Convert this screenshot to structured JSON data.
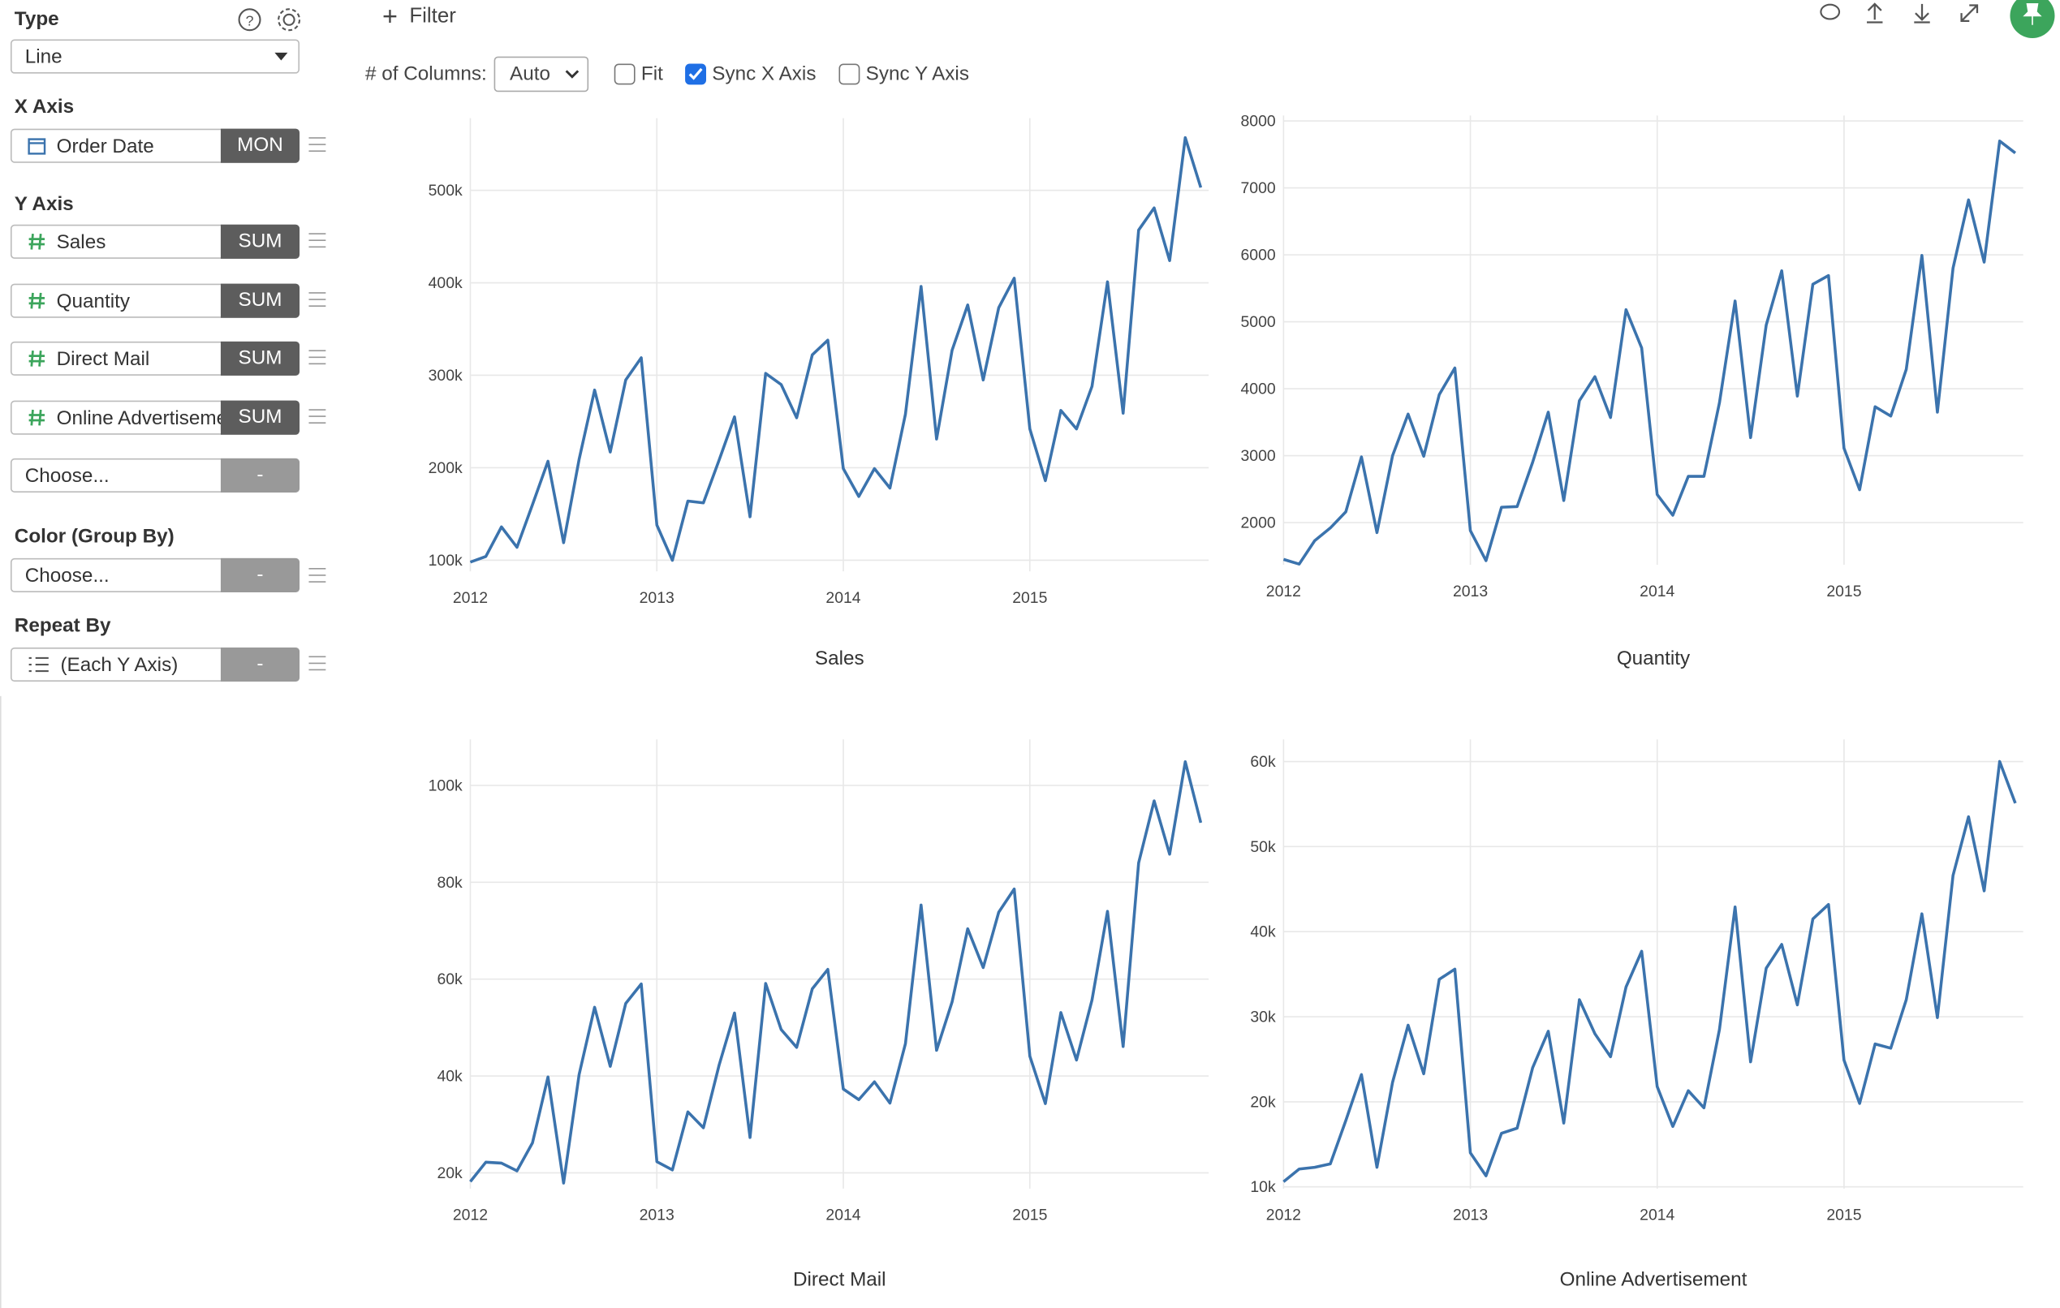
{
  "sidebar": {
    "type_label": "Type",
    "type_value": "Line",
    "x_axis_label": "X Axis",
    "x_field": "Order Date",
    "x_agg": "MON",
    "y_axis_label": "Y Axis",
    "y_fields": [
      {
        "name": "Sales",
        "agg": "SUM"
      },
      {
        "name": "Quantity",
        "agg": "SUM"
      },
      {
        "name": "Direct Mail",
        "agg": "SUM"
      },
      {
        "name": "Online Advertisement",
        "agg": "SUM"
      },
      {
        "name": "Choose...",
        "agg": "-"
      }
    ],
    "color_label": "Color (Group By)",
    "color_choose": "Choose...",
    "color_agg": "-",
    "repeat_label": "Repeat By",
    "repeat_value": "(Each Y Axis)",
    "repeat_agg": "-"
  },
  "toolbar": {
    "filter": "Filter",
    "columns_label": "# of Columns:",
    "columns_value": "Auto",
    "fit": "Fit",
    "fit_checked": false,
    "sync_x": "Sync X Axis",
    "sync_x_checked": true,
    "sync_y": "Sync Y Axis",
    "sync_y_checked": false
  },
  "chart_data": [
    {
      "type": "line",
      "title": "Sales",
      "color": "#3b73ad",
      "grid": true,
      "categories": [
        "2012",
        null,
        null,
        null,
        null,
        null,
        null,
        null,
        null,
        null,
        null,
        null,
        "2013",
        null,
        null,
        null,
        null,
        null,
        null,
        null,
        null,
        null,
        null,
        null,
        "2014",
        null,
        null,
        null,
        null,
        null,
        null,
        null,
        null,
        null,
        null,
        null,
        "2015",
        null,
        null,
        null,
        null,
        null,
        null,
        null,
        null,
        null,
        null,
        null
      ],
      "values": [
        98000,
        104000,
        136000,
        114000,
        160000,
        207000,
        119000,
        209000,
        284000,
        217000,
        295000,
        319000,
        138000,
        100000,
        164000,
        162000,
        208000,
        255000,
        147000,
        302000,
        290000,
        254000,
        322000,
        338000,
        199000,
        169000,
        199000,
        178000,
        258000,
        396000,
        231000,
        327000,
        376000,
        295000,
        373000,
        405000,
        242000,
        186000,
        262000,
        242000,
        288000,
        401000,
        259000,
        457000,
        481000,
        424000,
        557000,
        503000
      ],
      "ylim": [
        88000,
        578000
      ],
      "yticks": [
        {
          "value": 100000,
          "label": "100k"
        },
        {
          "value": 200000,
          "label": "200k"
        },
        {
          "value": 300000,
          "label": "300k"
        },
        {
          "value": 400000,
          "label": "400k"
        },
        {
          "value": 500000,
          "label": "500k"
        }
      ]
    },
    {
      "type": "line",
      "title": "Quantity",
      "color": "#3b73ad",
      "grid": true,
      "categories": [
        "2012",
        null,
        null,
        null,
        null,
        null,
        null,
        null,
        null,
        null,
        null,
        null,
        "2013",
        null,
        null,
        null,
        null,
        null,
        null,
        null,
        null,
        null,
        null,
        null,
        "2014",
        null,
        null,
        null,
        null,
        null,
        null,
        null,
        null,
        null,
        null,
        null,
        "2015",
        null,
        null,
        null,
        null,
        null,
        null,
        null,
        null,
        null,
        null,
        null
      ],
      "values": [
        1450,
        1380,
        1730,
        1920,
        2160,
        2980,
        1850,
        3000,
        3620,
        2990,
        3910,
        4310,
        1880,
        1430,
        2230,
        2240,
        2900,
        3650,
        2330,
        3820,
        4180,
        3570,
        5180,
        4610,
        2420,
        2110,
        2690,
        2690,
        3790,
        5310,
        3270,
        4950,
        5760,
        3890,
        5560,
        5690,
        3110,
        2490,
        3730,
        3590,
        4290,
        5990,
        3650,
        5800,
        6820,
        5890,
        7700,
        7520
      ],
      "ylim": [
        1370,
        8080
      ],
      "yticks": [
        2000,
        3000,
        4000,
        5000,
        6000,
        7000,
        8000
      ]
    },
    {
      "type": "line",
      "title": "Direct Mail",
      "color": "#3b73ad",
      "grid": true,
      "categories": [
        "2012",
        null,
        null,
        null,
        null,
        null,
        null,
        null,
        null,
        null,
        null,
        null,
        "2013",
        null,
        null,
        null,
        null,
        null,
        null,
        null,
        null,
        null,
        null,
        null,
        "2014",
        null,
        null,
        null,
        null,
        null,
        null,
        null,
        null,
        null,
        null,
        null,
        "2015",
        null,
        null,
        null,
        null,
        null,
        null,
        null,
        null,
        null,
        null,
        null
      ],
      "values": [
        18200,
        22200,
        22000,
        20400,
        26200,
        39800,
        17900,
        40300,
        54200,
        42000,
        55000,
        59000,
        22300,
        20600,
        32600,
        29300,
        42200,
        53000,
        27300,
        59100,
        49600,
        45900,
        58000,
        62000,
        37300,
        35100,
        38800,
        34400,
        46700,
        75300,
        45300,
        55300,
        70400,
        62400,
        73800,
        78600,
        44100,
        34300,
        53100,
        43300,
        55700,
        74000,
        46100,
        84000,
        96800,
        85800,
        104900,
        92300
      ],
      "ylim": [
        16750,
        109500
      ],
      "yticks": [
        {
          "value": 20000,
          "label": "20k"
        },
        {
          "value": 40000,
          "label": "40k"
        },
        {
          "value": 60000,
          "label": "60k"
        },
        {
          "value": 80000,
          "label": "80k"
        },
        {
          "value": 100000,
          "label": "100k"
        }
      ]
    },
    {
      "type": "line",
      "title": "Online Advertisement",
      "color": "#3b73ad",
      "grid": true,
      "categories": [
        "2012",
        null,
        null,
        null,
        null,
        null,
        null,
        null,
        null,
        null,
        null,
        null,
        "2013",
        null,
        null,
        null,
        null,
        null,
        null,
        null,
        null,
        null,
        null,
        null,
        "2014",
        null,
        null,
        null,
        null,
        null,
        null,
        null,
        null,
        null,
        null,
        null,
        "2015",
        null,
        null,
        null,
        null,
        null,
        null,
        null,
        null,
        null,
        null,
        null
      ],
      "values": [
        10600,
        12100,
        12300,
        12700,
        17800,
        23200,
        12300,
        22300,
        29000,
        23300,
        34400,
        35600,
        14000,
        11300,
        16300,
        16900,
        24000,
        28300,
        17500,
        32000,
        28000,
        25300,
        33500,
        37700,
        21800,
        17100,
        21300,
        19300,
        28500,
        42900,
        24700,
        35700,
        38500,
        31400,
        41500,
        43200,
        24900,
        19800,
        26800,
        26300,
        32000,
        42100,
        29900,
        46600,
        53500,
        44800,
        60000,
        55100
      ],
      "ylim": [
        9800,
        62600
      ],
      "yticks": [
        {
          "value": 10000,
          "label": "10k"
        },
        {
          "value": 20000,
          "label": "20k"
        },
        {
          "value": 30000,
          "label": "30k"
        },
        {
          "value": 40000,
          "label": "40k"
        },
        {
          "value": 50000,
          "label": "50k"
        },
        {
          "value": 60000,
          "label": "60k"
        }
      ]
    }
  ]
}
